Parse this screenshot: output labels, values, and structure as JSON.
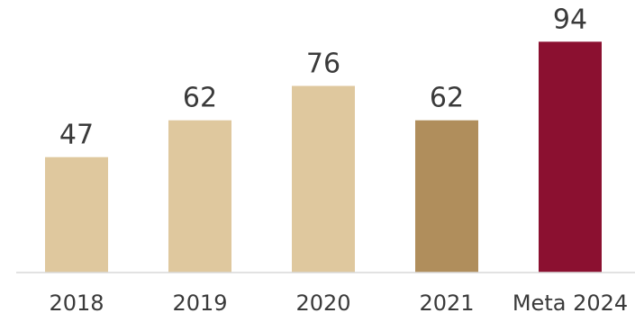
{
  "chart_data": {
    "type": "bar",
    "title": "",
    "xlabel": "",
    "ylabel": "",
    "categories": [
      "2018",
      "2019",
      "2020",
      "2021",
      "Meta 2024"
    ],
    "values": [
      47,
      62,
      76,
      62,
      94
    ],
    "ylim": [
      0,
      100
    ],
    "grid": false,
    "legend": "none",
    "data_labels": true,
    "bar_colors": [
      "#dfc89e",
      "#dfc89e",
      "#dfc89e",
      "#b08e5c",
      "#8b1030"
    ],
    "axis_color": "#d9d9d9",
    "text_color": "#3a3a3a"
  }
}
